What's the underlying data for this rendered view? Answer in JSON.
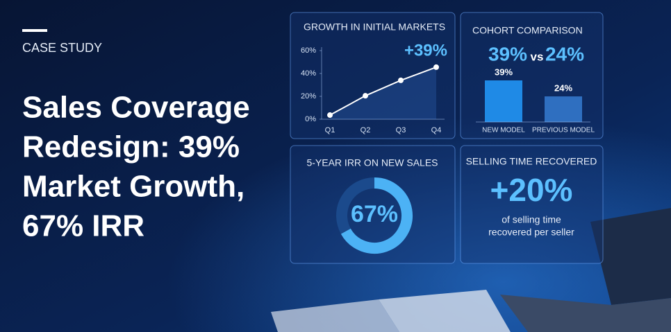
{
  "header": {
    "kicker": "CASE STUDY",
    "title_lines": [
      "Sales Coverage",
      "Redesign: 39%",
      "Market Growth,",
      "67% IRR"
    ]
  },
  "chart_data": [
    {
      "type": "line",
      "title": "GROWTH IN INITIAL MARKETS",
      "annotation": "+39%",
      "categories": [
        "Q1",
        "Q2",
        "Q3",
        "Q4"
      ],
      "values": [
        3.6,
        20.5,
        34,
        45.5
      ],
      "color": "#ffffff",
      "ylim": [
        0,
        60
      ],
      "yticks": [
        {
          "value": 0,
          "label": "0%"
        },
        {
          "value": 20,
          "label": "20%"
        },
        {
          "value": 40,
          "label": "40%"
        },
        {
          "value": 60,
          "label": "60%"
        }
      ]
    },
    {
      "type": "bar",
      "title": "COHORT COMPARISON",
      "headline": [
        "39%",
        "vs",
        "24%"
      ],
      "categories": [
        "NEW MODEL",
        "PREVIOUS MODEL"
      ],
      "values": [
        39,
        24
      ],
      "value_labels": [
        "39%",
        "24%"
      ],
      "colors": [
        "#1f8ae6",
        "#2f6fc0"
      ]
    },
    {
      "type": "donut",
      "title": "5-YEAR IRR ON NEW SALES",
      "values": [
        67,
        33
      ],
      "value_labels": [
        "67%",
        null
      ],
      "colors": [
        "#4cb2f5",
        "#1b4a8c"
      ]
    }
  ],
  "stat": {
    "title": "SELLING TIME RECOVERED",
    "value": "+20%",
    "caption_lines": [
      "of selling time",
      "recovered per seller"
    ]
  }
}
